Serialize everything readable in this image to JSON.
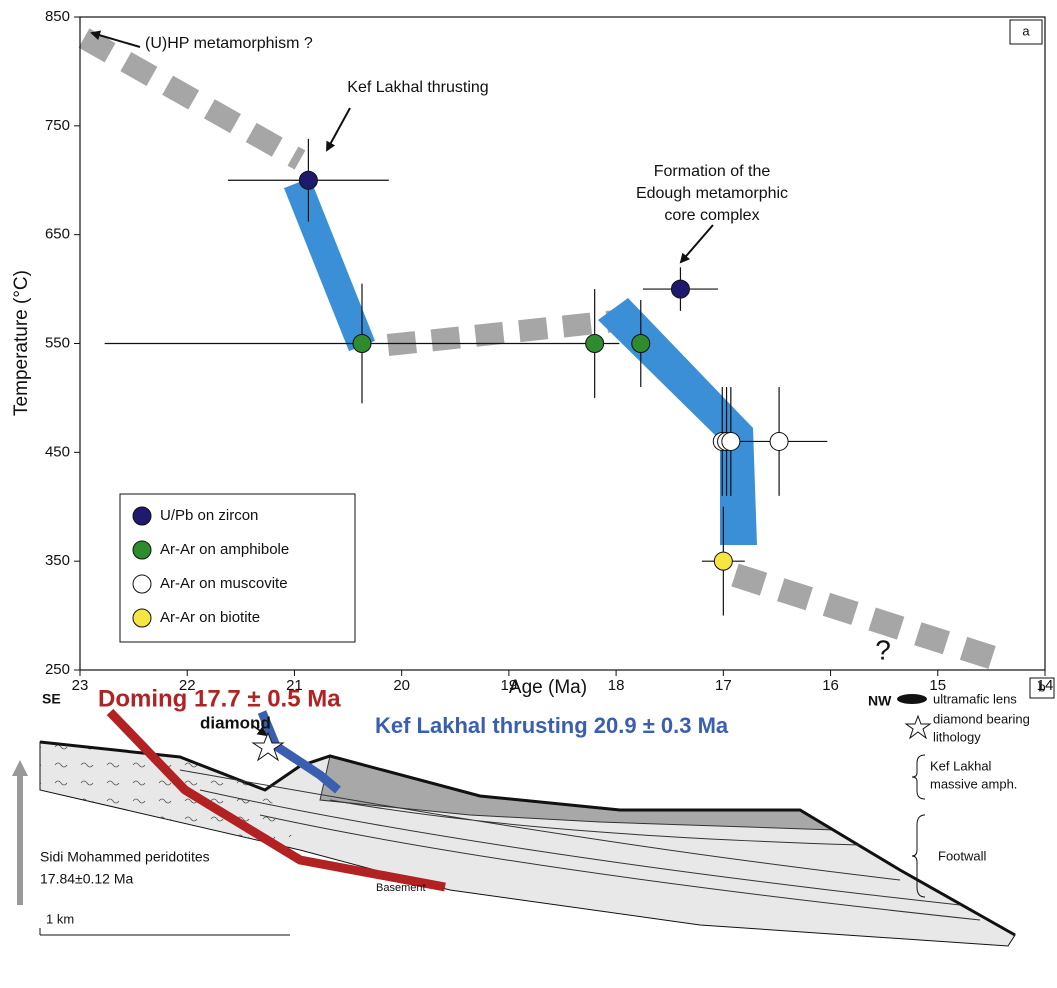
{
  "chart_data": {
    "type": "scatter",
    "xlabel": "Age (Ma)",
    "ylabel": "Temperature (°C)",
    "panel_label": "a",
    "xlim": [
      23,
      14
    ],
    "xticks": [
      23,
      22,
      21,
      20,
      19,
      18,
      17,
      16,
      15,
      14
    ],
    "ylim": [
      250,
      850
    ],
    "yticks": [
      250,
      350,
      450,
      550,
      650,
      750,
      850
    ],
    "legend": "lower left",
    "series": [
      {
        "name": "U/Pb on zircon",
        "color": "#1f1a6e",
        "x": [
          20.87,
          17.4
        ],
        "values": [
          700,
          600
        ],
        "xerr": [
          0.75,
          0.35
        ],
        "yerr": [
          38,
          20
        ]
      },
      {
        "name": "Ar-Ar on amphibole",
        "color": "#2e8b2e",
        "x": [
          20.37,
          18.2,
          17.77
        ],
        "values": [
          550,
          550,
          550
        ],
        "xerr": [
          2.4,
          null,
          null
        ],
        "yerr": [
          55,
          50,
          40
        ]
      },
      {
        "name": "Ar-Ar on muscovite",
        "color": "#ffffff",
        "x": [
          17.01,
          16.97,
          16.93,
          16.48
        ],
        "values": [
          460,
          460,
          460,
          460
        ],
        "xerr": [
          null,
          null,
          null,
          0.45
        ],
        "yerr": [
          50,
          50,
          50,
          50
        ]
      },
      {
        "name": "Ar-Ar on biotite",
        "color": "#f5e642",
        "x": [
          17.0
        ],
        "values": [
          350
        ],
        "xerr": [
          0.2
        ],
        "yerr": [
          50
        ]
      }
    ],
    "annotations": [
      "(U)HP metamorphism ?",
      "Kef Lakhal thrusting",
      "Formation of the",
      "Edough metamorphic",
      "core complex",
      "?"
    ]
  },
  "panel_b": {
    "label": "b",
    "se": "SE",
    "nw": "NW",
    "doming": "Doming 17.7 ± 0.5 Ma",
    "diamond": "diamond",
    "thrusting": "Kef Lakhal thrusting 20.9 ± 0.3 Ma",
    "legend_lens": "ultramafic lens",
    "legend_diamond": [
      "diamond bearing",
      "lithology"
    ],
    "unit_amph": [
      "Kef Lakhal",
      "massive amph."
    ],
    "unit_footwall": "Footwall",
    "peridotites": [
      "Sidi Mohammed peridotites",
      "17.84±0.12 Ma"
    ],
    "basement": "Basement",
    "scale": "1 km"
  }
}
